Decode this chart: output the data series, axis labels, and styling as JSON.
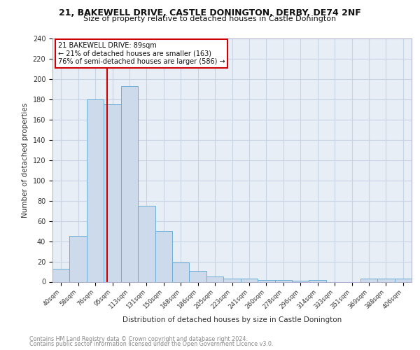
{
  "title1": "21, BAKEWELL DRIVE, CASTLE DONINGTON, DERBY, DE74 2NF",
  "title2": "Size of property relative to detached houses in Castle Donington",
  "xlabel": "Distribution of detached houses by size in Castle Donington",
  "ylabel": "Number of detached properties",
  "footnote1": "Contains HM Land Registry data © Crown copyright and database right 2024.",
  "footnote2": "Contains public sector information licensed under the Open Government Licence v3.0.",
  "bin_labels": [
    "40sqm",
    "58sqm",
    "76sqm",
    "95sqm",
    "113sqm",
    "131sqm",
    "150sqm",
    "168sqm",
    "186sqm",
    "205sqm",
    "223sqm",
    "241sqm",
    "260sqm",
    "278sqm",
    "296sqm",
    "314sqm",
    "333sqm",
    "351sqm",
    "369sqm",
    "388sqm",
    "406sqm"
  ],
  "bar_heights": [
    13,
    45,
    180,
    175,
    193,
    75,
    50,
    19,
    11,
    5,
    3,
    3,
    2,
    2,
    1,
    2,
    0,
    0,
    3,
    3,
    3
  ],
  "bar_color": "#cddaeb",
  "bar_edge_color": "#6baed6",
  "grid_color": "#c8d4e4",
  "background_color": "#e8eef6",
  "vline_color": "#cc0000",
  "annotation_text": "21 BAKEWELL DRIVE: 89sqm\n← 21% of detached houses are smaller (163)\n76% of semi-detached houses are larger (586) →",
  "annotation_box_color": "#ffffff",
  "annotation_box_edge": "#cc0000",
  "ylim": [
    0,
    240
  ],
  "yticks": [
    0,
    20,
    40,
    60,
    80,
    100,
    120,
    140,
    160,
    180,
    200,
    220,
    240
  ],
  "bin_values": [
    40,
    58,
    76,
    95,
    113,
    131,
    150,
    168,
    186,
    205,
    223,
    241,
    260,
    278,
    296,
    314,
    333,
    351,
    369,
    388,
    406
  ],
  "property_size": 89
}
